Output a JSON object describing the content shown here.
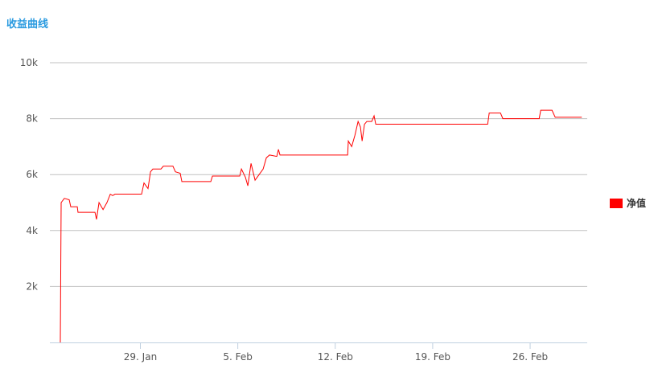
{
  "chart_data": {
    "type": "line",
    "title": "收益曲线",
    "x": [
      23.25,
      23.31,
      23.54,
      23.89,
      24.0,
      24.47,
      24.52,
      25.74,
      25.85,
      26.03,
      26.32,
      26.6,
      26.84,
      27.01,
      27.18,
      29.09,
      29.26,
      29.55,
      29.73,
      29.9,
      30.48,
      30.65,
      31.34,
      31.52,
      31.86,
      31.98,
      34.06,
      34.18,
      36.14,
      36.26,
      36.55,
      36.72,
      36.95,
      37.24,
      37.53,
      37.82,
      38.05,
      38.28,
      38.8,
      38.92,
      39.03,
      43.89,
      43.94,
      44.18,
      44.41,
      44.64,
      44.81,
      44.93,
      45.1,
      45.27,
      45.62,
      45.79,
      45.91,
      53.95,
      54.06,
      54.87,
      55.04,
      57.65,
      57.76,
      58.57,
      58.8,
      60.71
    ],
    "series": [
      {
        "name": "净值",
        "color": "#ff0000",
        "values": [
          0,
          5000,
          5150,
          5100,
          4850,
          4850,
          4650,
          4650,
          4400,
          5000,
          4750,
          5000,
          5300,
          5250,
          5300,
          5300,
          5700,
          5500,
          6100,
          6200,
          6200,
          6300,
          6300,
          6100,
          6050,
          5750,
          5750,
          5950,
          5950,
          6200,
          5900,
          5600,
          6400,
          5800,
          6000,
          6200,
          6600,
          6700,
          6650,
          6900,
          6700,
          6700,
          7200,
          7000,
          7400,
          7900,
          7700,
          7200,
          7800,
          7900,
          7900,
          8100,
          7800,
          7800,
          8200,
          8200,
          8000,
          8000,
          8300,
          8300,
          8050,
          8050
        ]
      }
    ],
    "xlim": [
      22.5,
      61.1
    ],
    "xticks": [
      {
        "value": 29,
        "label": "29. Jan"
      },
      {
        "value": 36,
        "label": "5. Feb"
      },
      {
        "value": 43,
        "label": "12. Feb"
      },
      {
        "value": 50,
        "label": "19. Feb"
      },
      {
        "value": 57,
        "label": "26. Feb"
      }
    ],
    "ylim": [
      0,
      10000
    ],
    "yticks": [
      {
        "value": 2000,
        "label": "2k"
      },
      {
        "value": 4000,
        "label": "4k"
      },
      {
        "value": 6000,
        "label": "6k"
      },
      {
        "value": 8000,
        "label": "8k"
      },
      {
        "value": 10000,
        "label": "10k"
      }
    ],
    "grid": true,
    "legend": "right"
  }
}
